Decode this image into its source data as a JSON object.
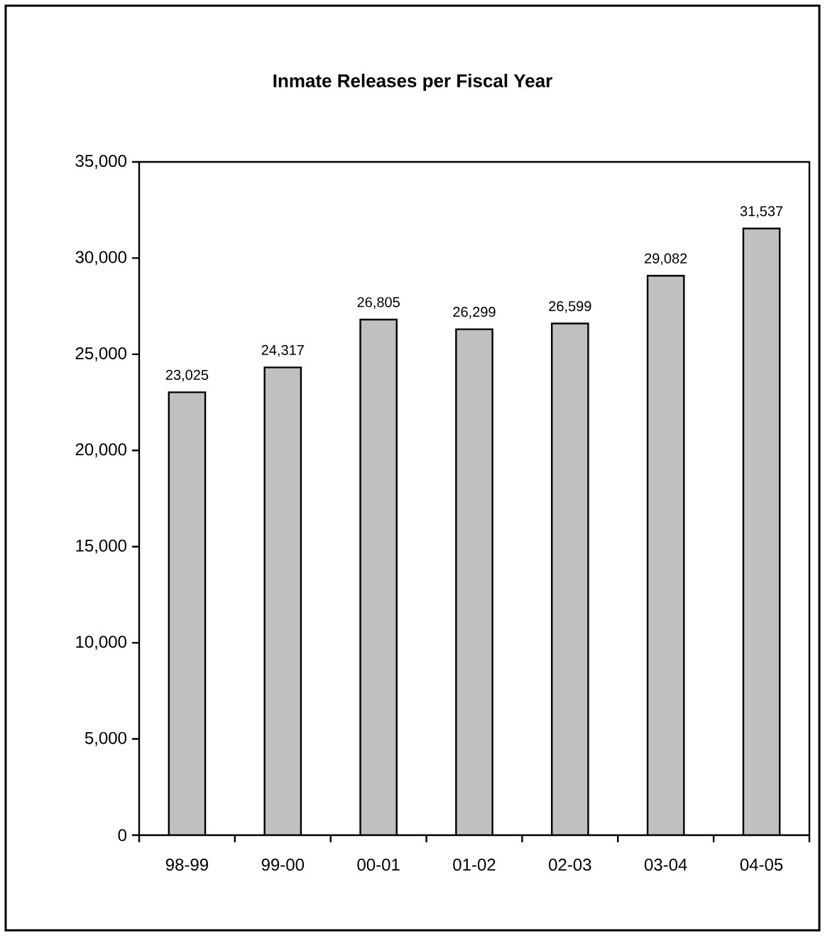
{
  "chart_data": {
    "type": "bar",
    "title": "Inmate Releases per Fiscal Year",
    "categories": [
      "98-99",
      "99-00",
      "00-01",
      "01-02",
      "02-03",
      "03-04",
      "04-05"
    ],
    "values": [
      23025,
      24317,
      26805,
      26299,
      26599,
      29082,
      31537
    ],
    "value_labels": [
      "23,025",
      "24,317",
      "26,805",
      "26,299",
      "26,599",
      "29,082",
      "31,537"
    ],
    "color": "#c0c0c0",
    "yticks": [
      {
        "value": 0,
        "label": "0"
      },
      {
        "value": 5000,
        "label": "5,000"
      },
      {
        "value": 10000,
        "label": "10,000"
      },
      {
        "value": 15000,
        "label": "15,000"
      },
      {
        "value": 20000,
        "label": "20,000"
      },
      {
        "value": 25000,
        "label": "25,000"
      },
      {
        "value": 30000,
        "label": "30,000"
      },
      {
        "value": 35000,
        "label": "35,000"
      }
    ],
    "ylim": [
      0,
      35000
    ]
  }
}
